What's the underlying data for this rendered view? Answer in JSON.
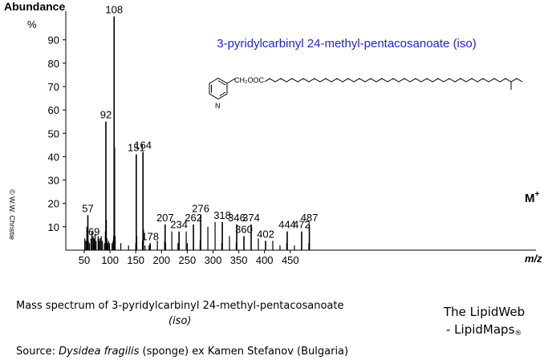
{
  "chart_data": {
    "type": "bar",
    "title": "3-pyridylcarbinyl 24-methyl-pentacosanoate (iso)",
    "ylabel": "Abundance",
    "yunit": "%",
    "xlabel": "m/z",
    "xlim": [
      40,
      490
    ],
    "ylim": [
      0,
      100
    ],
    "xticks": [
      "50",
      "100",
      "150",
      "200",
      "250",
      "300",
      "350",
      "400",
      "450"
    ],
    "yticks": [
      "10",
      "20",
      "30",
      "40",
      "50",
      "60",
      "70",
      "80",
      "90"
    ],
    "molecular_ion_label": "M",
    "molecular_ion_sup": "+",
    "copyright": "© W.W. Christie",
    "structure": {
      "group": "CH₂OOC",
      "ring_atom": "N"
    },
    "labeled_peaks": [
      {
        "mz": 57,
        "abundance": 15,
        "label": "57"
      },
      {
        "mz": 69,
        "abundance": 5,
        "label": "69"
      },
      {
        "mz": 92,
        "abundance": 55,
        "label": "92"
      },
      {
        "mz": 108,
        "abundance": 100,
        "label": "108"
      },
      {
        "mz": 151,
        "abundance": 41,
        "label": "151"
      },
      {
        "mz": 164,
        "abundance": 42,
        "label": "164"
      },
      {
        "mz": 178,
        "abundance": 3,
        "label": "178"
      },
      {
        "mz": 207,
        "abundance": 11,
        "label": "207"
      },
      {
        "mz": 234,
        "abundance": 8,
        "label": "234"
      },
      {
        "mz": 262,
        "abundance": 11,
        "label": "262"
      },
      {
        "mz": 276,
        "abundance": 15,
        "label": "276"
      },
      {
        "mz": 318,
        "abundance": 12,
        "label": "318"
      },
      {
        "mz": 346,
        "abundance": 11,
        "label": "346"
      },
      {
        "mz": 360,
        "abundance": 6,
        "label": "360"
      },
      {
        "mz": 374,
        "abundance": 11,
        "label": "374"
      },
      {
        "mz": 402,
        "abundance": 4,
        "label": "402"
      },
      {
        "mz": 444,
        "abundance": 8,
        "label": "444"
      },
      {
        "mz": 472,
        "abundance": 8,
        "label": "472"
      },
      {
        "mz": 487,
        "abundance": 11,
        "label": "487"
      }
    ],
    "minor_peaks": [
      {
        "mz": 51,
        "abundance": 5
      },
      {
        "mz": 53,
        "abundance": 4
      },
      {
        "mz": 55,
        "abundance": 10
      },
      {
        "mz": 56,
        "abundance": 6
      },
      {
        "mz": 58,
        "abundance": 4
      },
      {
        "mz": 60,
        "abundance": 3
      },
      {
        "mz": 63,
        "abundance": 5
      },
      {
        "mz": 65,
        "abundance": 8
      },
      {
        "mz": 67,
        "abundance": 6
      },
      {
        "mz": 71,
        "abundance": 7
      },
      {
        "mz": 73,
        "abundance": 4
      },
      {
        "mz": 77,
        "abundance": 6
      },
      {
        "mz": 78,
        "abundance": 5
      },
      {
        "mz": 79,
        "abundance": 4
      },
      {
        "mz": 81,
        "abundance": 5
      },
      {
        "mz": 83,
        "abundance": 6
      },
      {
        "mz": 85,
        "abundance": 4
      },
      {
        "mz": 89,
        "abundance": 3
      },
      {
        "mz": 91,
        "abundance": 8
      },
      {
        "mz": 93,
        "abundance": 13
      },
      {
        "mz": 94,
        "abundance": 5
      },
      {
        "mz": 95,
        "abundance": 3
      },
      {
        "mz": 97,
        "abundance": 4
      },
      {
        "mz": 99,
        "abundance": 3
      },
      {
        "mz": 104,
        "abundance": 3
      },
      {
        "mz": 106,
        "abundance": 4
      },
      {
        "mz": 107,
        "abundance": 6
      },
      {
        "mz": 109,
        "abundance": 44
      },
      {
        "mz": 110,
        "abundance": 6
      },
      {
        "mz": 121,
        "abundance": 3
      },
      {
        "mz": 136,
        "abundance": 2
      },
      {
        "mz": 150,
        "abundance": 3
      },
      {
        "mz": 152,
        "abundance": 6
      },
      {
        "mz": 163,
        "abundance": 4
      },
      {
        "mz": 165,
        "abundance": 9
      },
      {
        "mz": 168,
        "abundance": 2
      },
      {
        "mz": 176,
        "abundance": 2
      },
      {
        "mz": 192,
        "abundance": 4
      },
      {
        "mz": 206,
        "abundance": 4
      },
      {
        "mz": 208,
        "abundance": 3
      },
      {
        "mz": 220,
        "abundance": 8
      },
      {
        "mz": 232,
        "abundance": 3
      },
      {
        "mz": 248,
        "abundance": 8
      },
      {
        "mz": 250,
        "abundance": 3
      },
      {
        "mz": 275,
        "abundance": 4
      },
      {
        "mz": 290,
        "abundance": 10
      },
      {
        "mz": 304,
        "abundance": 12
      },
      {
        "mz": 317,
        "abundance": 3
      },
      {
        "mz": 332,
        "abundance": 6
      },
      {
        "mz": 345,
        "abundance": 3
      },
      {
        "mz": 388,
        "abundance": 5
      },
      {
        "mz": 416,
        "abundance": 4
      },
      {
        "mz": 430,
        "abundance": 2
      },
      {
        "mz": 443,
        "abundance": 3
      },
      {
        "mz": 458,
        "abundance": 2
      },
      {
        "mz": 486,
        "abundance": 3
      }
    ]
  },
  "caption": {
    "line1": "Mass spectrum of 3-pyridylcarbinyl 24-methyl-pentacosanoate",
    "line2": "(iso)"
  },
  "brand": {
    "line1": "The LipidWeb",
    "line2": "- LipidMaps",
    "mark": "®"
  },
  "source": {
    "prefix": "Source:",
    "organism": "Dysidea fragilis",
    "rest": "(sponge) ex Kamen Stefanov (Bulgaria)"
  }
}
